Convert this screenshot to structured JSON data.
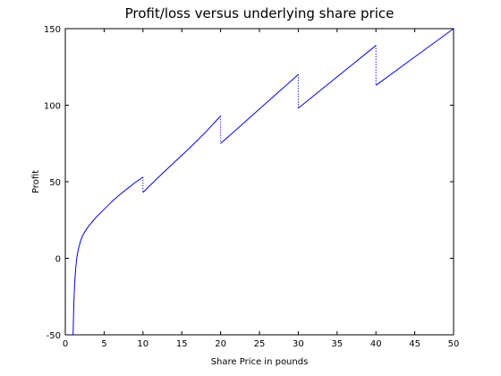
{
  "chart_data": {
    "type": "line",
    "title": "Profit/loss versus underlying share price",
    "xlabel": "Share Price in pounds",
    "ylabel": "Profit",
    "xlim": [
      0,
      50
    ],
    "ylim": [
      -50,
      150
    ],
    "xticks": [
      0,
      5,
      10,
      15,
      20,
      25,
      30,
      35,
      40,
      45,
      50
    ],
    "yticks": [
      -50,
      0,
      50,
      100,
      150
    ],
    "grid": false,
    "line_color": "#0000ff",
    "series": [
      {
        "segments": [
          {
            "x": [
              1.0,
              1.1,
              1.2,
              1.35,
              1.5,
              1.7,
              2.0,
              2.3,
              2.6,
              3.0,
              3.5,
              4.0,
              4.5,
              5.0,
              6.0,
              7.0,
              8.0,
              9.0,
              10.0
            ],
            "y": [
              -50.0,
              -30.0,
              -17.0,
              -6.0,
              1.0,
              6.5,
              12.0,
              15.5,
              18.0,
              21.0,
              24.0,
              27.0,
              29.5,
              32.0,
              37.0,
              41.5,
              45.5,
              49.5,
              53.0
            ]
          },
          {
            "x": [
              10.0,
              11.0,
              12.0,
              14.0,
              16.0,
              18.0,
              20.0
            ],
            "y": [
              43.0,
              48.0,
              53.0,
              62.5,
              72.0,
              82.0,
              93.0
            ]
          },
          {
            "x": [
              20.0,
              25.0,
              30.0
            ],
            "y": [
              75.0,
              97.5,
              120.0
            ]
          },
          {
            "x": [
              30.0,
              35.0,
              40.0
            ],
            "y": [
              98.0,
              118.5,
              139.0
            ]
          },
          {
            "x": [
              40.0,
              45.0,
              50.0
            ],
            "y": [
              113.0,
              131.5,
              150.0
            ]
          }
        ],
        "jumps": [
          {
            "x": 10,
            "from": 53,
            "to": 43
          },
          {
            "x": 20,
            "from": 93,
            "to": 75
          },
          {
            "x": 30,
            "from": 120,
            "to": 98
          },
          {
            "x": 40,
            "from": 139,
            "to": 113
          }
        ]
      }
    ]
  }
}
